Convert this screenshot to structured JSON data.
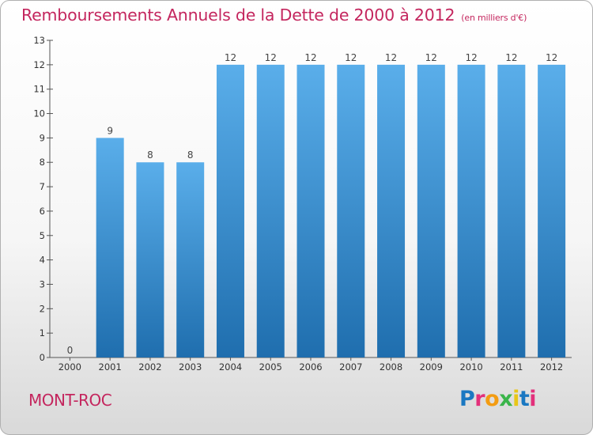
{
  "header": {
    "title": "Remboursements Annuels de la Dette de 2000 à 2012",
    "unit": "(en milliers d'€)"
  },
  "footer": {
    "commune": "MONT-ROC",
    "logo_text": "Proxiti"
  },
  "colors": {
    "bar_top": "#5aaeea",
    "bar_bottom": "#1f6eae",
    "title": "#c4265e",
    "logo_letters": [
      "#1a78c2",
      "#e3307b",
      "#f39c12",
      "#3ab54a",
      "#e8c619",
      "#1a78c2",
      "#e3307b"
    ]
  },
  "chart_data": {
    "type": "bar",
    "title": "Remboursements Annuels de la Dette de 2000 à 2012",
    "subtitle": "(en milliers d'€)",
    "categories": [
      "2000",
      "2001",
      "2002",
      "2003",
      "2004",
      "2005",
      "2006",
      "2007",
      "2008",
      "2009",
      "2010",
      "2011",
      "2012"
    ],
    "values": [
      0,
      9,
      8,
      8,
      12,
      12,
      12,
      12,
      12,
      12,
      12,
      12,
      12
    ],
    "data_labels": [
      "0",
      "9",
      "8",
      "8",
      "12",
      "12",
      "12",
      "12",
      "12",
      "12",
      "12",
      "12",
      "12"
    ],
    "y_ticks": [
      "0",
      "1",
      "2",
      "3",
      "4",
      "5",
      "6",
      "7",
      "8",
      "9",
      "10",
      "11",
      "12",
      "13"
    ],
    "ylim": [
      0,
      13
    ],
    "xlabel": "",
    "ylabel": "",
    "grid": false,
    "legend": "none"
  }
}
